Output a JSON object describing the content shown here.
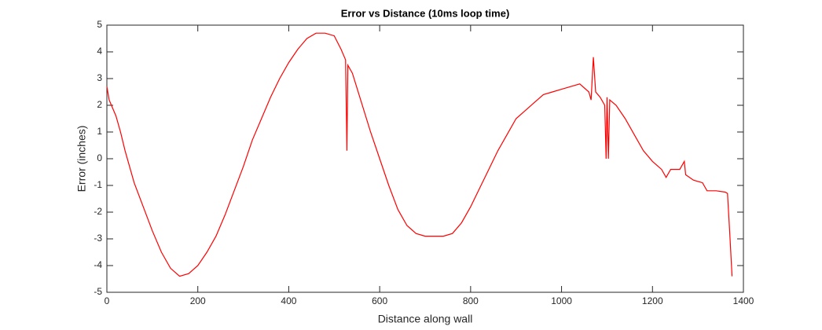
{
  "chart_data": {
    "type": "line",
    "title": "Error vs Distance (10ms loop time)",
    "x_label": "Distance along wall",
    "y_label": "Error (inches)",
    "xlim": [
      0,
      1400
    ],
    "xticks": [
      0,
      200,
      400,
      600,
      800,
      1000,
      1200,
      1400
    ],
    "ylim": [
      -5,
      5
    ],
    "yticks": [
      -5,
      -4,
      -3,
      -2,
      -1,
      0,
      1,
      2,
      3,
      4,
      5
    ],
    "grid": false,
    "x": [
      0,
      5,
      10,
      20,
      30,
      40,
      50,
      60,
      80,
      100,
      120,
      140,
      160,
      180,
      200,
      220,
      240,
      260,
      280,
      300,
      320,
      340,
      360,
      380,
      400,
      420,
      440,
      460,
      480,
      500,
      515,
      525,
      528,
      530,
      540,
      560,
      580,
      600,
      620,
      640,
      660,
      680,
      700,
      720,
      740,
      760,
      780,
      800,
      820,
      840,
      860,
      880,
      900,
      920,
      940,
      960,
      980,
      1000,
      1020,
      1040,
      1060,
      1065,
      1070,
      1075,
      1085,
      1095,
      1098,
      1100,
      1103,
      1106,
      1120,
      1140,
      1160,
      1180,
      1200,
      1220,
      1230,
      1240,
      1260,
      1270,
      1273,
      1290,
      1310,
      1320,
      1340,
      1360,
      1365,
      1370,
      1375
    ],
    "series": [
      {
        "name": "Error",
        "color": "#ff0000",
        "values": [
          2.7,
          2.2,
          2.0,
          1.6,
          1.0,
          0.3,
          -0.3,
          -0.9,
          -1.8,
          -2.7,
          -3.5,
          -4.1,
          -4.4,
          -4.3,
          -4.0,
          -3.5,
          -2.9,
          -2.1,
          -1.2,
          -0.3,
          0.7,
          1.5,
          2.3,
          3.0,
          3.6,
          4.1,
          4.5,
          4.7,
          4.7,
          4.6,
          4.1,
          3.7,
          0.3,
          3.5,
          3.2,
          2.1,
          1.0,
          0,
          -1.0,
          -1.9,
          -2.5,
          -2.8,
          -2.9,
          -2.9,
          -2.9,
          -2.8,
          -2.4,
          -1.8,
          -1.1,
          -0.4,
          0.3,
          0.9,
          1.5,
          1.8,
          2.1,
          2.4,
          2.5,
          2.6,
          2.7,
          2.8,
          2.5,
          2.2,
          3.8,
          2.5,
          2.3,
          2.0,
          0,
          2.3,
          0,
          2.2,
          2.0,
          1.5,
          0.9,
          0.3,
          -0.1,
          -0.4,
          -0.7,
          -0.4,
          -0.4,
          -0.1,
          -0.6,
          -0.8,
          -0.9,
          -1.2,
          -1.2,
          -1.25,
          -1.3,
          -2.8,
          -4.4
        ]
      }
    ]
  }
}
